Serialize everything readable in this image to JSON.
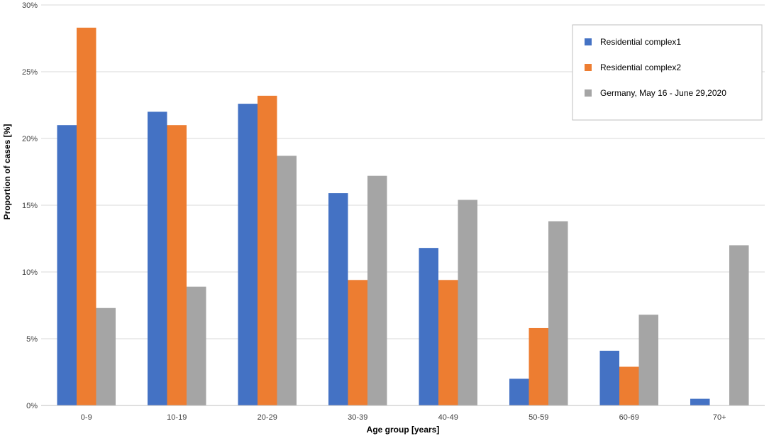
{
  "chart_data": {
    "type": "bar",
    "title": "",
    "xlabel": "Age group [years]",
    "ylabel": "Proportion of cases [%]",
    "ylim": [
      0,
      30
    ],
    "yticks": [
      0,
      5,
      10,
      15,
      20,
      25,
      30
    ],
    "ytick_labels": [
      "0%",
      "5%",
      "10%",
      "15%",
      "20%",
      "25%",
      "30%"
    ],
    "grid": true,
    "legend_position": "top-right",
    "categories": [
      "0-9",
      "10-19",
      "20-29",
      "30-39",
      "40-49",
      "50-59",
      "60-69",
      "70+"
    ],
    "series": [
      {
        "name": "Residential complex1",
        "color": "#4472C4",
        "values": [
          21.0,
          22.0,
          22.6,
          15.9,
          11.8,
          2.0,
          4.1,
          0.5
        ]
      },
      {
        "name": "Residential complex2",
        "color": "#ED7D31",
        "values": [
          28.3,
          21.0,
          23.2,
          9.4,
          9.4,
          5.8,
          2.9,
          0
        ]
      },
      {
        "name": "Germany, May 16  - June 29,2020",
        "color": "#A5A5A5",
        "values": [
          7.3,
          8.9,
          18.7,
          17.2,
          15.4,
          13.8,
          6.8,
          12.0
        ]
      }
    ]
  }
}
